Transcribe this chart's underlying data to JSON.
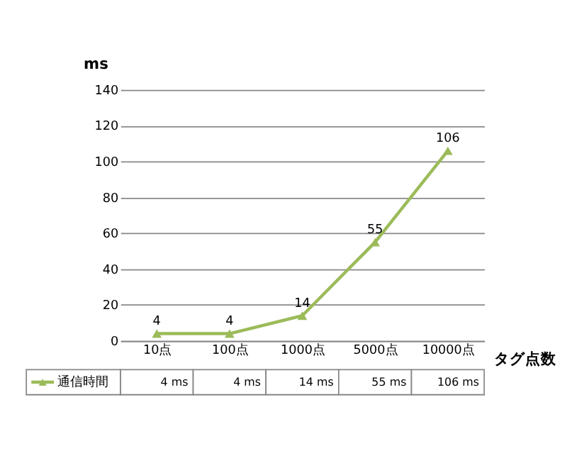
{
  "chart_data": {
    "type": "line",
    "ylabel": "ms",
    "xlabel": "タグ点数",
    "categories": [
      "10点",
      "100点",
      "1000点",
      "5000点",
      "10000点"
    ],
    "series": [
      {
        "name": "通信時間",
        "color": "#9bbb59",
        "values": [
          4,
          4,
          14,
          55,
          106
        ],
        "value_labels": [
          "4",
          "4",
          "14",
          "55",
          "106"
        ]
      }
    ],
    "annotations": [
      "4 ms",
      "4 ms",
      "14 ms",
      "55 ms",
      "106 ms"
    ],
    "ylim": [
      0,
      140
    ],
    "yticks": [
      0,
      20,
      40,
      60,
      80,
      100,
      120,
      140
    ],
    "grid": "y",
    "marker": "triangle",
    "line_style": "solid",
    "legend": "bottom"
  }
}
